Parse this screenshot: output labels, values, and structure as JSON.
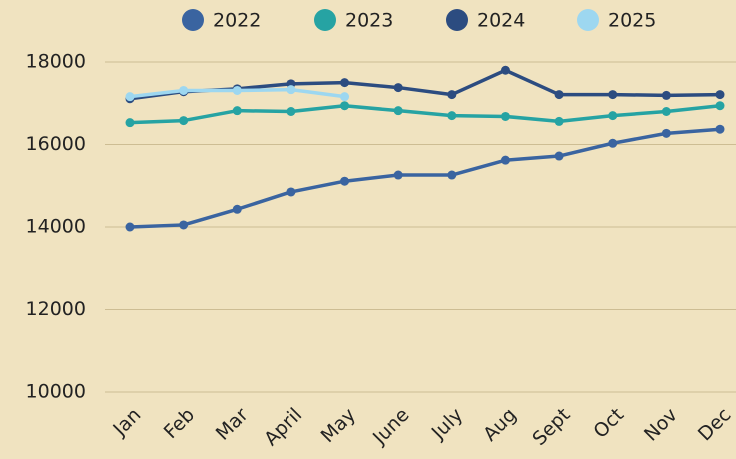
{
  "chart_data": {
    "type": "line",
    "categories": [
      "Jan",
      "Feb",
      "Mar",
      "April",
      "May",
      "June",
      "July",
      "Aug",
      "Sept",
      "Oct",
      "Nov",
      "Dec"
    ],
    "series": [
      {
        "name": "2022",
        "color": "#3a64a0",
        "values": [
          14000,
          14050,
          14430,
          14850,
          15110,
          15260,
          15260,
          15620,
          15720,
          16030,
          16270,
          16370
        ]
      },
      {
        "name": "2023",
        "color": "#26a3a3",
        "values": [
          16530,
          16580,
          16820,
          16800,
          16940,
          16820,
          16700,
          16680,
          16560,
          16700,
          16800,
          16940
        ]
      },
      {
        "name": "2024",
        "color": "#2c4c80",
        "values": [
          17110,
          17280,
          17350,
          17470,
          17500,
          17380,
          17210,
          17800,
          17210,
          17210,
          17190,
          17210
        ]
      },
      {
        "name": "2025",
        "color": "#9dd7f0",
        "values": [
          17160,
          17310,
          17310,
          17330,
          17160,
          null,
          null,
          null,
          null,
          null,
          null,
          null
        ]
      }
    ],
    "ylim": [
      10000,
      18000
    ],
    "yticks": [
      10000,
      12000,
      14000,
      16000,
      18000
    ],
    "grid": true,
    "legend": "top"
  }
}
